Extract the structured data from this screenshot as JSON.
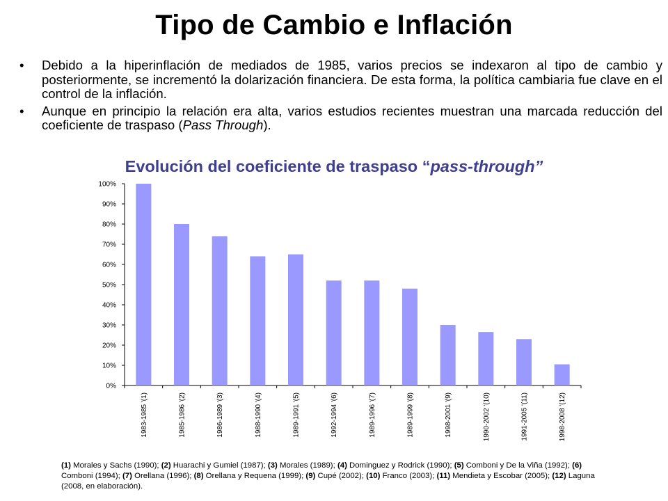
{
  "slide": {
    "title": "Tipo de Cambio e Inflación",
    "bullet_marker": "•",
    "bullets": [
      {
        "text": "Debido a la hiperinflación de mediados de 1985, varios precios se indexaron al tipo de cambio y posteriormente, se incrementó la dolarización financiera. De esta forma, la política cambiaria fue clave en el control de la inflación."
      },
      {
        "text_before": "Aunque en principio la relación era alta, varios estudios recientes muestran una marcada reducción del coeficiente de traspaso (",
        "text_italic": "Pass Through",
        "text_after": ")."
      }
    ],
    "chart_title": {
      "text": "Evolución del coeficiente de traspaso “",
      "italic": "pass-through”"
    },
    "footnote": [
      {
        "num": "(1)",
        "text": " Morales y Sachs (1990); "
      },
      {
        "num": "(2)",
        "text": " Huarachi y Gumiel (1987); "
      },
      {
        "num": "(3)",
        "text": " Morales (1989); "
      },
      {
        "num": "(4)",
        "text": " Dominguez y Rodrick (1990); "
      },
      {
        "num": "(5)",
        "text": " Comboni y De la Viña (1992); "
      },
      {
        "num": "(6)",
        "text": " Comboni (1994); "
      },
      {
        "num": "(7)",
        "text": " Orellana (1996); "
      },
      {
        "num": "(8)",
        "text": " Orellana y Requena (1999); "
      },
      {
        "num": "(9)",
        "text": " Cupé (2002); "
      },
      {
        "num": "(10)",
        "text": " Franco (2003); "
      },
      {
        "num": "(11)",
        "text": " Mendieta y Escobar (2005); "
      },
      {
        "num": "(12)",
        "text": " Laguna (2008, en elaboración)."
      }
    ]
  },
  "chart_data": {
    "type": "bar",
    "title": "Evolución del coeficiente de traspaso “pass-through”",
    "categories": [
      "1983-1985 '(1)",
      "1985-1986 '(2)",
      "1986-1989 '(3)",
      "1988-1990 '(4)",
      "1989-1991 '(5)",
      "1992-1994 '(6)",
      "1989-1996 '(7)",
      "1989-1999 '(8)",
      "1998-2001 '(9)",
      "1990-2002 '(10)",
      "1991-2005 '(11)",
      "1998-2008 '(12)"
    ],
    "values": [
      100,
      80,
      74,
      64,
      65,
      52,
      52,
      48,
      30,
      26.5,
      23,
      10.5
    ],
    "ylim": [
      0,
      100
    ],
    "yticks": [
      "0%",
      "10%",
      "20%",
      "30%",
      "40%",
      "50%",
      "60%",
      "70%",
      "80%",
      "90%",
      "100%"
    ],
    "grid": false,
    "bar_color": "#9999ff"
  }
}
